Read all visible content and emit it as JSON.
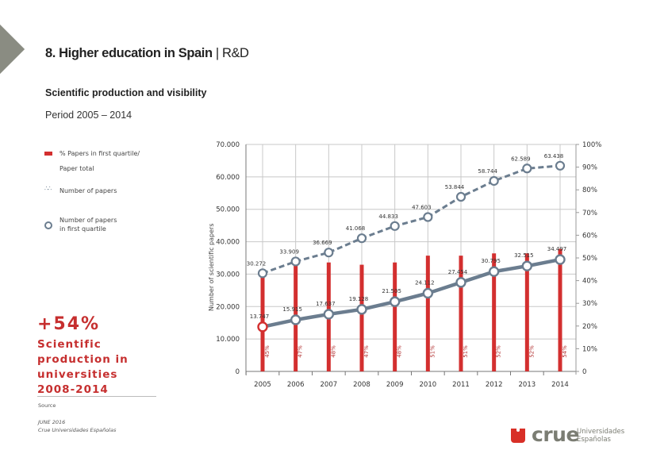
{
  "header": {
    "title_bold": "8. Higher education in Spain",
    "title_sep": " | ",
    "title_rest": "R&D",
    "subtitle": "Scientific production and visibility",
    "period": "Period 2005 – 2014"
  },
  "legend": [
    {
      "icon": "red-bar",
      "label_line1": "% Papers in first quartile/",
      "label_line2": "Paper total"
    },
    {
      "icon": "dotted-marker",
      "label_line1": "Number of papers",
      "label_line2": ""
    },
    {
      "icon": "ring-marker",
      "label_line1": "Number of papers",
      "label_line2": "in first quartile"
    }
  ],
  "highlight": {
    "value": "+54%",
    "line1": "Scientific",
    "line2": "production in",
    "line3": "universities",
    "line4": "2008-2014"
  },
  "footer": {
    "source_label": "Source",
    "date": "JUNE 2016",
    "source_name": "Crue Universidades Españolas"
  },
  "logo": {
    "word": "crue",
    "sub1": "Universidades",
    "sub2": "Españolas"
  },
  "colors": {
    "accent_red": "#d32f2f",
    "line_slate": "#6b7d8f",
    "grid": "#c8c8c8"
  },
  "chart_data": {
    "type": "bar+line",
    "title": "",
    "categories": [
      "2005",
      "2006",
      "2007",
      "2008",
      "2009",
      "2010",
      "2011",
      "2012",
      "2013",
      "2014"
    ],
    "ylabel": "Number of scientific papers",
    "ylim": [
      0,
      70000
    ],
    "y_ticks": [
      "0",
      "10.000",
      "20.000",
      "30.000",
      "40.000",
      "50.000",
      "60.000",
      "70.000"
    ],
    "y_tick_values": [
      0,
      10000,
      20000,
      30000,
      40000,
      50000,
      60000,
      70000
    ],
    "y2lim": [
      0,
      100
    ],
    "y2_ticks": [
      "0",
      "10%",
      "20%",
      "30%",
      "40%",
      "50%",
      "60%",
      "70%",
      "80%",
      "90%",
      "100%"
    ],
    "y2_tick_values": [
      0,
      10,
      20,
      30,
      40,
      50,
      60,
      70,
      80,
      90,
      100
    ],
    "grid": true,
    "series": [
      {
        "name": "Number of papers",
        "type": "line-dashed",
        "axis": "left",
        "values": [
          30272,
          33909,
          36669,
          41068,
          44833,
          47603,
          53844,
          58744,
          62589,
          63438
        ],
        "labels": [
          "30.272",
          "33.909",
          "36.669",
          "41.068",
          "44.833",
          "47.603",
          "53.844",
          "58.744",
          "62.589",
          "63.438"
        ]
      },
      {
        "name": "Number of papers in first quartile",
        "type": "line",
        "axis": "left",
        "values": [
          13747,
          15915,
          17637,
          19128,
          21505,
          24112,
          27454,
          30795,
          32515,
          34497
        ],
        "labels": [
          "13.747",
          "15.915",
          "17.637",
          "19.128",
          "21.505",
          "24.112",
          "27.454",
          "30.795",
          "32.515",
          "34.497"
        ]
      },
      {
        "name": "% Papers in first quartile/ Paper total",
        "type": "bar",
        "axis": "right",
        "values": [
          45,
          47,
          48,
          47,
          48,
          51,
          51,
          52,
          52,
          54
        ],
        "labels": [
          "45%",
          "47%",
          "48%",
          "47%",
          "48%",
          "51%",
          "51%",
          "52%",
          "52%",
          "54%"
        ]
      }
    ]
  }
}
